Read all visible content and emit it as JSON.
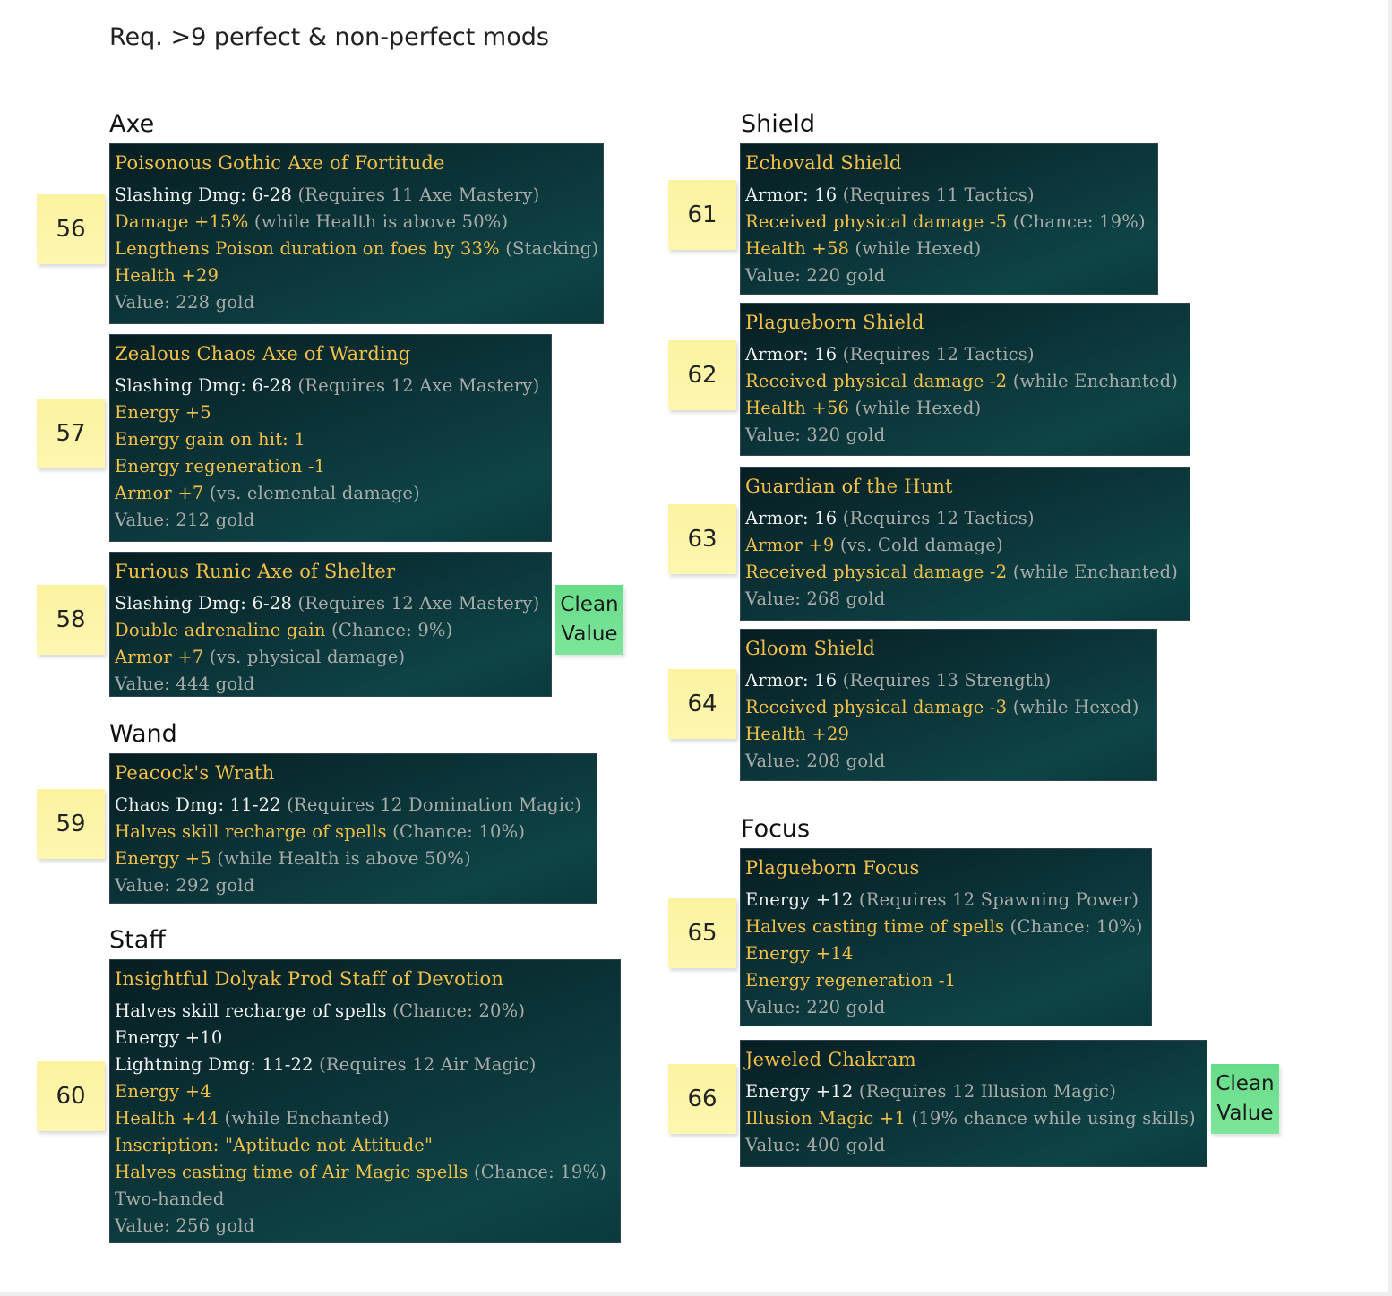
{
  "title": "Req. >9 perfect & non-perfect mods",
  "headings": {
    "axe": "Axe",
    "wand": "Wand",
    "staff": "Staff",
    "shield": "Shield",
    "focus": "Focus"
  },
  "clean_label": "Clean Value",
  "colors": {
    "item_name": "#f2c14a",
    "base_stat": "#f2f2f2",
    "condition": "#a9abab",
    "note": "#fbf3a0",
    "clean_note": "#6fe090"
  },
  "cards": [
    {
      "num": "56",
      "name": "Poisonous Gothic Axe of Fortitude",
      "lines": [
        [
          [
            "Slashing Dmg: 6-28",
            "w"
          ],
          [
            " (Requires 11 Axe Mastery)",
            "s"
          ]
        ],
        [
          [
            "Damage +15%",
            "g"
          ],
          [
            " (while Health is above 50%)",
            "s"
          ]
        ],
        [
          [
            "Lengthens Poison duration on foes by 33%",
            "g"
          ],
          [
            " (Stacking)",
            "s"
          ]
        ],
        [
          [
            "Health +29",
            "g"
          ]
        ],
        [
          [
            "Value: 228 gold",
            "s"
          ]
        ]
      ]
    },
    {
      "num": "57",
      "name": "Zealous Chaos Axe of Warding",
      "lines": [
        [
          [
            "Slashing Dmg: 6-28",
            "w"
          ],
          [
            " (Requires 12 Axe Mastery)",
            "s"
          ]
        ],
        [
          [
            "Energy +5",
            "g"
          ]
        ],
        [
          [
            "Energy gain on hit: 1",
            "g"
          ]
        ],
        [
          [
            "Energy regeneration -1",
            "g"
          ]
        ],
        [
          [
            "Armor +7",
            "g"
          ],
          [
            " (vs. elemental damage)",
            "s"
          ]
        ],
        [
          [
            "Value: 212 gold",
            "s"
          ]
        ]
      ]
    },
    {
      "num": "58",
      "name": "Furious Runic Axe of Shelter",
      "clean": true,
      "lines": [
        [
          [
            "Slashing Dmg: 6-28",
            "w"
          ],
          [
            " (Requires 12 Axe Mastery)",
            "s"
          ]
        ],
        [
          [
            "Double adrenaline gain",
            "g"
          ],
          [
            " (Chance: 9%)",
            "s"
          ]
        ],
        [
          [
            "Armor +7",
            "g"
          ],
          [
            " (vs. physical damage)",
            "s"
          ]
        ],
        [
          [
            "Value: 444 gold",
            "s"
          ]
        ]
      ]
    },
    {
      "num": "59",
      "name": "Peacock's Wrath",
      "lines": [
        [
          [
            "Chaos Dmg: 11-22",
            "w"
          ],
          [
            " (Requires 12 Domination Magic)",
            "s"
          ]
        ],
        [
          [
            "Halves skill recharge of spells",
            "g"
          ],
          [
            " (Chance: 10%)",
            "s"
          ]
        ],
        [
          [
            "Energy +5",
            "g"
          ],
          [
            " (while Health is above 50%)",
            "s"
          ]
        ],
        [
          [
            "Value: 292 gold",
            "s"
          ]
        ]
      ]
    },
    {
      "num": "60",
      "name": "Insightful Dolyak Prod Staff of Devotion",
      "lines": [
        [
          [
            "Halves skill recharge of spells",
            "w"
          ],
          [
            " (Chance: 20%)",
            "s"
          ]
        ],
        [
          [
            "Energy +10",
            "w"
          ]
        ],
        [
          [
            "Lightning Dmg: 11-22",
            "w"
          ],
          [
            " (Requires 12 Air Magic)",
            "s"
          ]
        ],
        [
          [
            "Energy +4",
            "g"
          ]
        ],
        [
          [
            "Health +44",
            "g"
          ],
          [
            " (while Enchanted)",
            "s"
          ]
        ],
        [
          [
            "Inscription: \"Aptitude not Attitude\"",
            "g"
          ]
        ],
        [
          [
            "Halves casting time of Air Magic spells",
            "g"
          ],
          [
            " (Chance: 19%)",
            "s"
          ]
        ],
        [
          [
            "Two-handed",
            "s"
          ]
        ],
        [
          [
            "Value: 256 gold",
            "s"
          ]
        ]
      ]
    },
    {
      "num": "61",
      "name": "Echovald Shield",
      "lines": [
        [
          [
            "Armor: 16",
            "w"
          ],
          [
            " (Requires 11 Tactics)",
            "s"
          ]
        ],
        [
          [
            "Received physical damage -5",
            "g"
          ],
          [
            " (Chance: 19%)",
            "s"
          ]
        ],
        [
          [
            "Health +58",
            "g"
          ],
          [
            " (while Hexed)",
            "s"
          ]
        ],
        [
          [
            "Value: 220 gold",
            "s"
          ]
        ]
      ]
    },
    {
      "num": "62",
      "name": "Plagueborn Shield",
      "lines": [
        [
          [
            "Armor: 16",
            "w"
          ],
          [
            " (Requires 12 Tactics)",
            "s"
          ]
        ],
        [
          [
            "Received physical damage -2",
            "g"
          ],
          [
            " (while Enchanted)",
            "s"
          ]
        ],
        [
          [
            "Health +56",
            "g"
          ],
          [
            " (while Hexed)",
            "s"
          ]
        ],
        [
          [
            "Value: 320 gold",
            "s"
          ]
        ]
      ]
    },
    {
      "num": "63",
      "name": "Guardian of the Hunt",
      "lines": [
        [
          [
            "Armor: 16",
            "w"
          ],
          [
            " (Requires 12 Tactics)",
            "s"
          ]
        ],
        [
          [
            "Armor +9",
            "g"
          ],
          [
            " (vs. Cold damage)",
            "s"
          ]
        ],
        [
          [
            "Received physical damage -2",
            "g"
          ],
          [
            " (while Enchanted)",
            "s"
          ]
        ],
        [
          [
            "Value: 268 gold",
            "s"
          ]
        ]
      ]
    },
    {
      "num": "64",
      "name": "Gloom Shield",
      "lines": [
        [
          [
            "Armor: 16",
            "w"
          ],
          [
            " (Requires 13 Strength)",
            "s"
          ]
        ],
        [
          [
            "Received physical damage -3",
            "g"
          ],
          [
            " (while Hexed)",
            "s"
          ]
        ],
        [
          [
            "Health +29",
            "g"
          ]
        ],
        [
          [
            "Value: 208 gold",
            "s"
          ]
        ]
      ]
    },
    {
      "num": "65",
      "name": "Plagueborn Focus",
      "lines": [
        [
          [
            "Energy +12",
            "w"
          ],
          [
            " (Requires 12 Spawning Power)",
            "s"
          ]
        ],
        [
          [
            "Halves casting time of spells",
            "g"
          ],
          [
            " (Chance: 10%)",
            "s"
          ]
        ],
        [
          [
            "Energy +14",
            "g"
          ]
        ],
        [
          [
            "Energy regeneration -1",
            "g"
          ]
        ],
        [
          [
            "Value: 220 gold",
            "s"
          ]
        ]
      ]
    },
    {
      "num": "66",
      "name": "Jeweled Chakram",
      "clean": true,
      "lines": [
        [
          [
            "Energy +12",
            "w"
          ],
          [
            " (Requires 12 Illusion Magic)",
            "s"
          ]
        ],
        [
          [
            "Illusion Magic +1",
            "g"
          ],
          [
            " (19% chance while using skills)",
            "s"
          ]
        ],
        [
          [
            "Value: 400 gold",
            "s"
          ]
        ]
      ]
    }
  ]
}
